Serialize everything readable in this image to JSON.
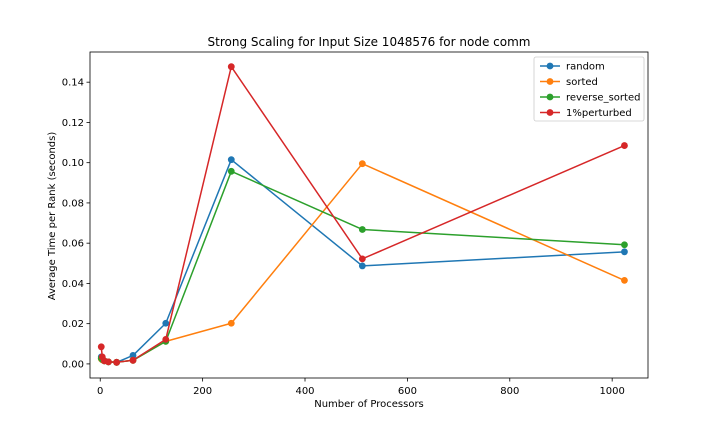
{
  "chart_data": {
    "type": "line",
    "title": "Strong Scaling for Input Size 1048576 for node comm",
    "xlabel": "Number of Processors",
    "ylabel": "Average Time per Rank (seconds)",
    "xlim": [
      -20,
      1070
    ],
    "ylim": [
      -0.007,
      0.155
    ],
    "xticks": [
      0,
      200,
      400,
      600,
      800,
      1000
    ],
    "yticks": [
      0.0,
      0.02,
      0.04,
      0.06,
      0.08,
      0.1,
      0.12,
      0.14
    ],
    "xtick_labels": [
      "0",
      "200",
      "400",
      "600",
      "800",
      "1000"
    ],
    "ytick_labels": [
      "0.00",
      "0.02",
      "0.04",
      "0.06",
      "0.08",
      "0.10",
      "0.12",
      "0.14"
    ],
    "grid": false,
    "legend_position": "top-right",
    "x": [
      2,
      4,
      8,
      16,
      32,
      64,
      128,
      256,
      512,
      1024
    ],
    "series": [
      {
        "name": "random",
        "color": "#1f77b4",
        "values": [
          0.0035,
          0.0025,
          0.0015,
          0.001,
          0.0008,
          0.0042,
          0.0202,
          0.1015,
          0.0487,
          0.0557
        ]
      },
      {
        "name": "sorted",
        "color": "#ff7f0e",
        "values": [
          0.0025,
          0.002,
          0.0015,
          0.001,
          0.0008,
          0.0018,
          0.0112,
          0.0202,
          0.0995,
          0.0415
        ]
      },
      {
        "name": "reverse_sorted",
        "color": "#2ca02c",
        "values": [
          0.0028,
          0.0022,
          0.0015,
          0.001,
          0.0008,
          0.0018,
          0.0112,
          0.0957,
          0.0668,
          0.0592
        ]
      },
      {
        "name": "1%perturbed",
        "color": "#d62728",
        "values": [
          0.0085,
          0.0035,
          0.0015,
          0.001,
          0.0008,
          0.0018,
          0.0122,
          0.1477,
          0.0522,
          0.1085
        ]
      }
    ]
  }
}
